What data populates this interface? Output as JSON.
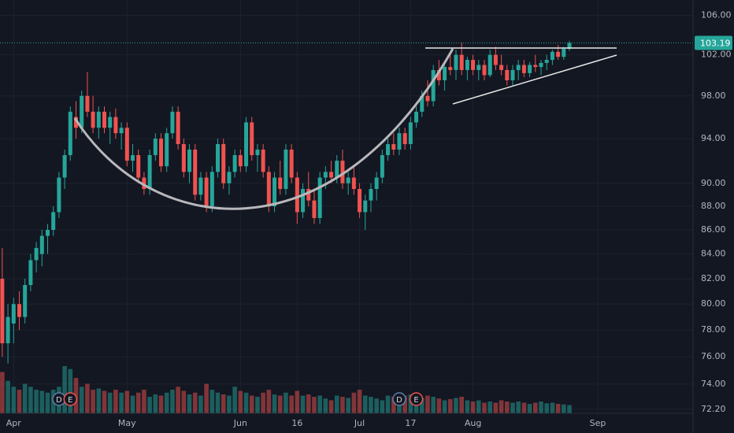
{
  "chart_data": {
    "type": "candlestick",
    "log_scale": true,
    "up_color": "#26a69a",
    "down_color": "#ef5350",
    "ylim": [
      71.92,
      107.6
    ],
    "yticks": [
      {
        "value": 72.2,
        "label": "72.20"
      },
      {
        "value": 74,
        "label": "74.00"
      },
      {
        "value": 76,
        "label": "76.00"
      },
      {
        "value": 78,
        "label": "78.00"
      },
      {
        "value": 80,
        "label": "80.00"
      },
      {
        "value": 82,
        "label": "82.00"
      },
      {
        "value": 84,
        "label": "84.00"
      },
      {
        "value": 86,
        "label": "86.00"
      },
      {
        "value": 88,
        "label": "88.00"
      },
      {
        "value": 90,
        "label": "90.00"
      },
      {
        "value": 94,
        "label": "94.00"
      },
      {
        "value": 98,
        "label": "98.00"
      },
      {
        "value": 102,
        "label": "102.00"
      },
      {
        "value": 106,
        "label": "106.00"
      }
    ],
    "xlim": [
      -0.4,
      121.8
    ],
    "xticks": [
      {
        "value": 2,
        "label": "Apr"
      },
      {
        "value": 22,
        "label": "May"
      },
      {
        "value": 42,
        "label": "Jun"
      },
      {
        "value": 52,
        "label": "16"
      },
      {
        "value": 63,
        "label": "Jul"
      },
      {
        "value": 72,
        "label": "17"
      },
      {
        "value": 83,
        "label": "Aug"
      },
      {
        "value": 105,
        "label": "Sep"
      }
    ],
    "grid": true,
    "last_price": 103.19,
    "ohlc": [
      [
        82,
        84.5,
        76,
        77
      ],
      [
        77,
        80,
        75.5,
        79
      ],
      [
        78.5,
        80.5,
        77,
        80
      ],
      [
        80,
        81,
        78,
        79
      ],
      [
        79,
        82,
        78.5,
        81.5
      ],
      [
        81.5,
        84,
        81,
        83.5
      ],
      [
        83.5,
        85,
        82.5,
        84.5
      ],
      [
        84,
        86,
        83,
        85.5
      ],
      [
        85.5,
        86.5,
        84,
        86
      ],
      [
        86,
        88,
        85.5,
        87.5
      ],
      [
        87.5,
        91,
        87,
        90.5
      ],
      [
        90.5,
        93,
        89.5,
        92.5
      ],
      [
        92.5,
        97,
        92,
        96.5
      ],
      [
        96,
        97.5,
        94,
        95
      ],
      [
        95,
        98.5,
        94.5,
        98
      ],
      [
        98,
        100.3,
        96,
        96.5
      ],
      [
        96.5,
        98,
        94.5,
        95
      ],
      [
        95,
        97,
        94,
        96.5
      ],
      [
        96.5,
        97,
        94.5,
        95
      ],
      [
        95,
        96.5,
        93.5,
        96
      ],
      [
        96,
        96.8,
        94,
        94.5
      ],
      [
        94.5,
        95.5,
        93,
        95
      ],
      [
        95,
        95.5,
        91.5,
        92
      ],
      [
        92,
        93.5,
        91,
        92.5
      ],
      [
        92.5,
        93,
        90,
        90.5
      ],
      [
        90.5,
        91,
        89,
        89.5
      ],
      [
        89.5,
        93,
        89,
        92.5
      ],
      [
        92.5,
        94.5,
        92,
        94
      ],
      [
        94,
        94.5,
        91,
        91.5
      ],
      [
        91.5,
        95,
        91,
        94.5
      ],
      [
        94.5,
        97,
        94,
        96.5
      ],
      [
        96.5,
        97,
        93,
        93.5
      ],
      [
        93.5,
        94,
        90.5,
        91
      ],
      [
        91,
        93.5,
        90,
        93
      ],
      [
        93,
        93.5,
        88.5,
        89
      ],
      [
        89,
        91,
        88.5,
        90.5
      ],
      [
        90.5,
        91,
        87.5,
        88
      ],
      [
        88,
        91.5,
        87.5,
        91
      ],
      [
        91,
        94,
        90.5,
        93.5
      ],
      [
        93.5,
        94,
        89.5,
        90
      ],
      [
        90,
        91.5,
        89,
        91
      ],
      [
        91,
        93,
        90.5,
        92.5
      ],
      [
        92.5,
        93,
        91,
        91.5
      ],
      [
        91.5,
        96,
        91,
        95.5
      ],
      [
        95.5,
        96,
        92,
        92.5
      ],
      [
        92.5,
        93.5,
        91,
        93
      ],
      [
        93,
        93.5,
        90.5,
        91
      ],
      [
        91,
        91.5,
        87.5,
        88
      ],
      [
        88,
        91,
        87.5,
        90.5
      ],
      [
        90.5,
        92,
        89,
        89.5
      ],
      [
        89.5,
        93.5,
        89,
        93
      ],
      [
        93,
        93.5,
        90,
        90.5
      ],
      [
        90.5,
        91,
        86.5,
        87.5
      ],
      [
        87.5,
        90,
        87,
        89.5
      ],
      [
        89.5,
        91,
        88,
        88.5
      ],
      [
        88.5,
        89.5,
        86.5,
        87
      ],
      [
        87,
        91,
        86.5,
        90.5
      ],
      [
        90.5,
        91.5,
        89.5,
        91
      ],
      [
        91,
        92,
        90,
        90.5
      ],
      [
        90.5,
        92.5,
        90,
        92
      ],
      [
        92,
        93,
        89.5,
        90
      ],
      [
        90,
        91,
        89,
        90.5
      ],
      [
        90.5,
        91.5,
        89,
        89.5
      ],
      [
        89.5,
        90,
        87,
        87.5
      ],
      [
        87.5,
        89,
        86,
        88.5
      ],
      [
        88.5,
        90,
        87.5,
        89.5
      ],
      [
        89.5,
        91,
        88.5,
        90.5
      ],
      [
        90.5,
        93,
        90,
        92.5
      ],
      [
        92.5,
        94,
        92,
        93.5
      ],
      [
        93.5,
        94.5,
        92.5,
        93
      ],
      [
        93,
        95,
        92.5,
        94.5
      ],
      [
        94.5,
        95,
        93,
        93.5
      ],
      [
        93.5,
        96,
        93,
        95.5
      ],
      [
        95.5,
        97,
        95,
        96.5
      ],
      [
        96.5,
        98.5,
        96,
        98
      ],
      [
        98,
        99.5,
        97,
        97.5
      ],
      [
        97.5,
        101,
        97,
        100.5
      ],
      [
        100.5,
        101.5,
        99,
        99.5
      ],
      [
        99.5,
        101,
        98.5,
        100.8
      ],
      [
        100.8,
        102,
        100,
        100.5
      ],
      [
        100.5,
        102.5,
        99.5,
        102
      ],
      [
        102,
        103.2,
        100,
        100.5
      ],
      [
        100.5,
        101.8,
        99.5,
        101.5
      ],
      [
        101.5,
        102,
        100,
        100.5
      ],
      [
        100.5,
        101.5,
        99.5,
        101
      ],
      [
        101,
        101.5,
        99.5,
        100
      ],
      [
        100,
        102.5,
        99.8,
        102
      ],
      [
        102,
        102.8,
        100.5,
        101
      ],
      [
        101,
        102,
        100,
        100.5
      ],
      [
        100.5,
        101,
        99,
        99.5
      ],
      [
        99.5,
        101,
        99,
        100.5
      ],
      [
        100.5,
        101.5,
        99.5,
        101
      ],
      [
        101,
        101.5,
        99.8,
        100.2
      ],
      [
        100.2,
        101.3,
        99.8,
        101
      ],
      [
        101,
        102,
        100.3,
        100.8
      ],
      [
        100.8,
        101.5,
        100,
        101.2
      ],
      [
        101.2,
        102,
        100.5,
        101.5
      ],
      [
        101.5,
        102.5,
        101,
        102.3
      ],
      [
        102.3,
        103,
        101.5,
        101.8
      ],
      [
        101.8,
        102.8,
        101.5,
        102.6
      ],
      [
        102.6,
        103.4,
        102.4,
        103.19
      ]
    ],
    "volume": [
      70,
      55,
      45,
      40,
      50,
      45,
      40,
      38,
      35,
      40,
      45,
      80,
      75,
      60,
      45,
      50,
      40,
      42,
      38,
      35,
      40,
      35,
      38,
      30,
      35,
      40,
      28,
      32,
      30,
      35,
      40,
      45,
      38,
      32,
      35,
      30,
      50,
      40,
      35,
      32,
      30,
      45,
      38,
      35,
      30,
      28,
      35,
      40,
      32,
      30,
      35,
      30,
      38,
      30,
      32,
      28,
      30,
      25,
      22,
      30,
      28,
      26,
      35,
      40,
      30,
      28,
      25,
      22,
      30,
      28,
      25,
      30,
      32,
      28,
      26,
      30,
      28,
      25,
      22,
      24,
      26,
      28,
      22,
      20,
      22,
      18,
      20,
      18,
      22,
      20,
      18,
      20,
      18,
      16,
      18,
      20,
      17,
      18,
      16,
      15,
      14
    ],
    "events": [
      {
        "label": "D",
        "index": 10
      },
      {
        "label": "E",
        "index": 12
      },
      {
        "label": "D",
        "index": 70
      },
      {
        "label": "E",
        "index": 73
      }
    ]
  }
}
